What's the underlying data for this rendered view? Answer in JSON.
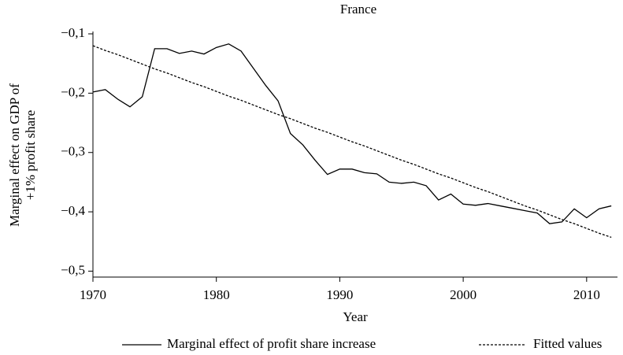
{
  "chart_data": {
    "type": "line",
    "title": "France",
    "x_label": "Year",
    "y_label": [
      "Marginal effect on GDP of",
      "+1% profit share"
    ],
    "x": [
      1970,
      1971,
      1972,
      1973,
      1974,
      1975,
      1976,
      1977,
      1978,
      1979,
      1980,
      1981,
      1982,
      1983,
      1984,
      1985,
      1986,
      1987,
      1988,
      1989,
      1990,
      1991,
      1992,
      1993,
      1994,
      1995,
      1996,
      1997,
      1998,
      1999,
      2000,
      2001,
      2002,
      2003,
      2004,
      2005,
      2006,
      2007,
      2008,
      2009,
      2010,
      2011,
      2012
    ],
    "series": [
      {
        "name": "Marginal effect of profit share increase",
        "color": "#000000",
        "line_style": "solid",
        "values": [
          -0.198,
          -0.194,
          -0.21,
          -0.223,
          -0.206,
          -0.125,
          -0.125,
          -0.133,
          -0.129,
          -0.134,
          -0.123,
          -0.117,
          -0.129,
          -0.158,
          -0.187,
          -0.213,
          -0.268,
          -0.287,
          -0.313,
          -0.337,
          -0.328,
          -0.328,
          -0.334,
          -0.336,
          -0.35,
          -0.352,
          -0.35,
          -0.356,
          -0.38,
          -0.37,
          -0.387,
          -0.389,
          -0.386,
          -0.39,
          -0.394,
          -0.398,
          -0.402,
          -0.42,
          -0.417,
          -0.395,
          -0.41,
          -0.395,
          -0.39
        ]
      },
      {
        "name": "Fitted values",
        "color": "#000000",
        "line_style": "dashed",
        "values": [
          -0.12,
          -0.128,
          -0.135,
          -0.143,
          -0.151,
          -0.159,
          -0.166,
          -0.174,
          -0.182,
          -0.189,
          -0.197,
          -0.205,
          -0.212,
          -0.22,
          -0.228,
          -0.236,
          -0.243,
          -0.251,
          -0.259,
          -0.266,
          -0.274,
          -0.282,
          -0.289,
          -0.297,
          -0.305,
          -0.313,
          -0.32,
          -0.328,
          -0.336,
          -0.343,
          -0.351,
          -0.359,
          -0.366,
          -0.374,
          -0.382,
          -0.39,
          -0.397,
          -0.405,
          -0.413,
          -0.42,
          -0.428,
          -0.436,
          -0.443
        ]
      }
    ],
    "xlim": [
      1970,
      2012.5
    ],
    "xticks": [
      1970,
      1980,
      1990,
      2000,
      2010
    ],
    "ylim": [
      -0.51,
      -0.1
    ],
    "yticks": [
      {
        "value": -0.5,
        "label": "−0,5"
      },
      {
        "value": -0.4,
        "label": "−0,4"
      },
      {
        "value": -0.3,
        "label": "−0,3"
      },
      {
        "value": -0.2,
        "label": "−0,2"
      },
      {
        "value": -0.1,
        "label": "−0,1"
      }
    ],
    "grid": false,
    "legend_position": "bottom"
  }
}
